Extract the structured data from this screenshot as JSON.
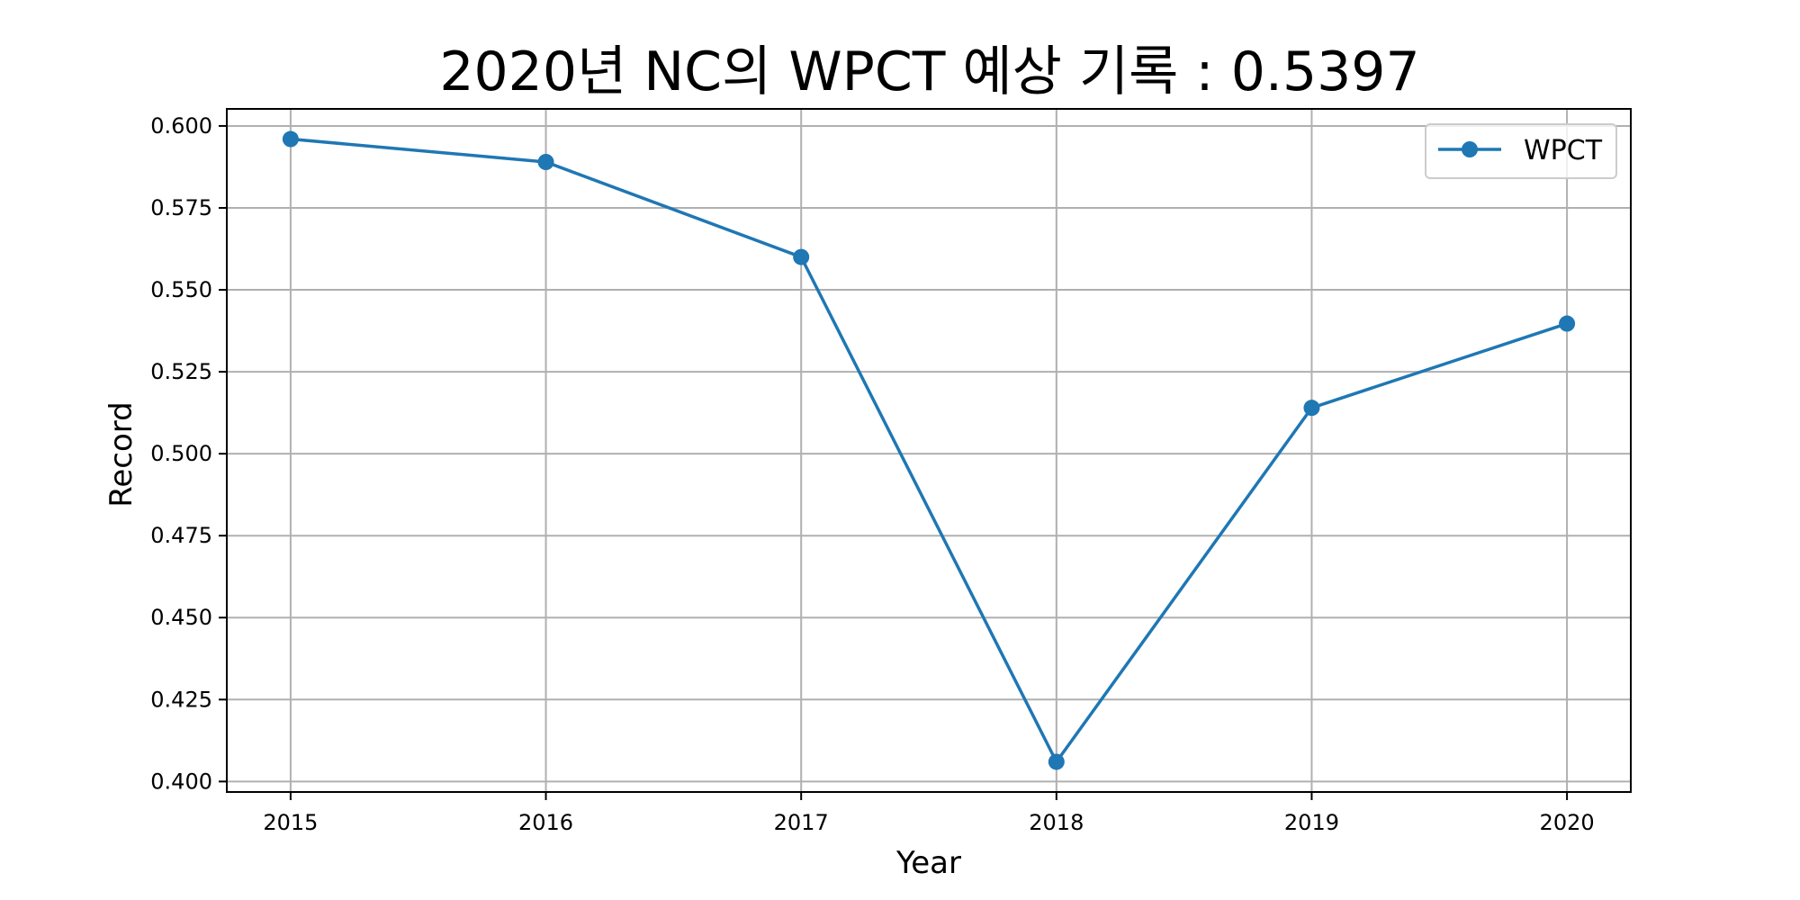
{
  "chart_data": {
    "type": "line",
    "title": "2020년 NC의 WPCT 예상 기록 : 0.5397",
    "xlabel": "Year",
    "ylabel": "Record",
    "x": [
      2015,
      2016,
      2017,
      2018,
      2019,
      2020
    ],
    "x_tick_labels": [
      "2015",
      "2016",
      "2017",
      "2018",
      "2019",
      "2020"
    ],
    "y_ticks": [
      0.4,
      0.425,
      0.45,
      0.475,
      0.5,
      0.525,
      0.55,
      0.575,
      0.6
    ],
    "y_tick_labels": [
      "0.400",
      "0.425",
      "0.450",
      "0.475",
      "0.500",
      "0.525",
      "0.550",
      "0.575",
      "0.600"
    ],
    "ylim": [
      0.3968,
      0.6052
    ],
    "xlim": [
      2014.75,
      2020.25
    ],
    "grid": true,
    "legend_position": "top-right",
    "series": [
      {
        "name": "WPCT",
        "color": "#1f77b4",
        "marker": "circle",
        "values": [
          0.596,
          0.589,
          0.56,
          0.406,
          0.514,
          0.5397
        ]
      }
    ]
  }
}
